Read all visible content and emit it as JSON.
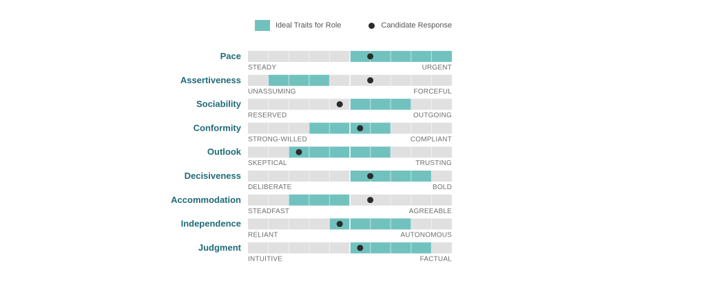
{
  "legend": {
    "ideal_label": "Ideal Traits for Role",
    "candidate_label": "Candidate Response"
  },
  "colors": {
    "track": "#e0e0e0",
    "ideal": "#71c2bf",
    "candidate": "#2b2b2b",
    "label": "#1f6b78",
    "pole": "#6f6f6f"
  },
  "chart_data": {
    "type": "range-dot",
    "title": "",
    "scale": {
      "min": 0,
      "max": 10,
      "segments": 10
    },
    "series": [
      {
        "name": "Ideal Traits for Role",
        "kind": "range"
      },
      {
        "name": "Candidate Response",
        "kind": "point"
      }
    ],
    "traits": [
      {
        "name": "Pace",
        "low": "STEADY",
        "high": "URGENT",
        "ideal": [
          5,
          10
        ],
        "candidate": 6
      },
      {
        "name": "Assertiveness",
        "low": "UNASSUMING",
        "high": "FORCEFUL",
        "ideal": [
          1,
          4
        ],
        "candidate": 6
      },
      {
        "name": "Sociability",
        "low": "RESERVED",
        "high": "OUTGOING",
        "ideal": [
          5,
          8
        ],
        "candidate": 4.5
      },
      {
        "name": "Conformity",
        "low": "STRONG-WILLED",
        "high": "COMPLIANT",
        "ideal": [
          3,
          7
        ],
        "candidate": 5.5
      },
      {
        "name": "Outlook",
        "low": "SKEPTICAL",
        "high": "TRUSTING",
        "ideal": [
          2,
          7
        ],
        "candidate": 2.5
      },
      {
        "name": "Decisiveness",
        "low": "DELIBERATE",
        "high": "BOLD",
        "ideal": [
          5,
          9
        ],
        "candidate": 6
      },
      {
        "name": "Accommodation",
        "low": "STEADFAST",
        "high": "AGREEABLE",
        "ideal": [
          2,
          5
        ],
        "candidate": 6
      },
      {
        "name": "Independence",
        "low": "RELIANT",
        "high": "AUTONOMOUS",
        "ideal": [
          4,
          8
        ],
        "candidate": 4.5
      },
      {
        "name": "Judgment",
        "low": "INTUITIVE",
        "high": "FACTUAL",
        "ideal": [
          5,
          9
        ],
        "candidate": 5.5
      }
    ]
  }
}
